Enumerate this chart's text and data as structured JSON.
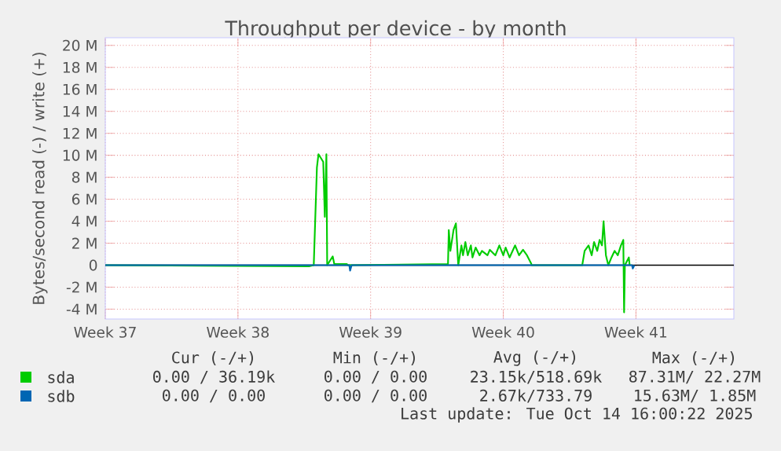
{
  "chart_data": {
    "type": "line",
    "title": "Throughput per device - by month",
    "ylabel": "Bytes/second read (-) / write (+)",
    "xlim": [
      "2025-09-11T12:00",
      "2025-10-14T16:00"
    ],
    "xticks": [
      {
        "value": "2025-09-11T12:00",
        "label": "Week 37"
      },
      {
        "value": "2025-09-18T12:00",
        "label": "Week 38"
      },
      {
        "value": "2025-09-25T12:00",
        "label": "Week 39"
      },
      {
        "value": "2025-10-02T12:00",
        "label": "Week 40"
      },
      {
        "value": "2025-10-09T12:00",
        "label": "Week 41"
      }
    ],
    "ylim": [
      -4.9,
      20.7
    ],
    "yticks": [
      {
        "value": -4,
        "label": "-4 M"
      },
      {
        "value": -2,
        "label": "-2 M"
      },
      0,
      {
        "value": 2,
        "label": "2 M"
      },
      {
        "value": 4,
        "label": "4 M"
      },
      {
        "value": 6,
        "label": "6 M"
      },
      {
        "value": 8,
        "label": "8 M"
      },
      {
        "value": 10,
        "label": "10 M"
      },
      {
        "value": 12,
        "label": "12 M"
      },
      {
        "value": 14,
        "label": "14 M"
      },
      {
        "value": 16,
        "label": "16 M"
      },
      {
        "value": 18,
        "label": "18 M"
      },
      {
        "value": 20,
        "label": "20 M"
      }
    ],
    "grid": true,
    "legend": "bottom",
    "marker": "none",
    "line_style": "solid",
    "ref_lines": [
      {
        "axis": "y",
        "value": 0,
        "color": "#000000"
      }
    ],
    "series": [
      {
        "name": "sda",
        "color": "#00cc00",
        "x": [
          "2025-09-11T12:00",
          "2025-09-22T06:00",
          "2025-09-22T12:00",
          "2025-09-22T16:00",
          "2025-09-22T18:00",
          "2025-09-23T00:00",
          "2025-09-23T02:00",
          "2025-09-23T04:00",
          "2025-09-23T05:00",
          "2025-09-23T12:00",
          "2025-09-23T14:00",
          "2025-09-24T06:00",
          "2025-09-24T07:00",
          "2025-09-29T14:00",
          "2025-09-29T15:00",
          "2025-09-29T17:00",
          "2025-09-29T21:00",
          "2025-09-30T00:00",
          "2025-09-30T03:00",
          "2025-09-30T07:00",
          "2025-09-30T09:00",
          "2025-09-30T12:00",
          "2025-09-30T15:00",
          "2025-09-30T19:00",
          "2025-09-30T21:00",
          "2025-10-01T01:00",
          "2025-10-01T06:00",
          "2025-10-01T09:00",
          "2025-10-01T16:00",
          "2025-10-01T19:00",
          "2025-10-02T02:00",
          "2025-10-02T07:00",
          "2025-10-02T12:00",
          "2025-10-02T15:00",
          "2025-10-02T20:00",
          "2025-10-03T03:00",
          "2025-10-03T08:00",
          "2025-10-03T13:00",
          "2025-10-03T18:00",
          "2025-10-03T23:00",
          "2025-10-04T00:00",
          "2025-10-06T16:00",
          "2025-10-06T19:00",
          "2025-10-07T00:00",
          "2025-10-07T04:00",
          "2025-10-07T07:00",
          "2025-10-07T11:00",
          "2025-10-07T14:00",
          "2025-10-07T17:00",
          "2025-10-07T19:00",
          "2025-10-07T22:00",
          "2025-10-08T01:00",
          "2025-10-08T05:00",
          "2025-10-08T09:00",
          "2025-10-08T13:00",
          "2025-10-08T17:00",
          "2025-10-08T20:00",
          "2025-10-08T21:00",
          "2025-10-08T22:00",
          "2025-10-09T03:00",
          "2025-10-09T04:00"
        ],
        "values": [
          0,
          -0.1,
          0,
          8.9,
          10.1,
          9.4,
          4.4,
          10.1,
          0,
          0.8,
          0.1,
          0.1,
          0,
          0.1,
          3.2,
          1.3,
          3.2,
          3.8,
          0,
          1.8,
          0.9,
          2.1,
          0.9,
          1.8,
          0.7,
          1.6,
          0.9,
          1.3,
          0.9,
          1.4,
          0.9,
          1.8,
          0.9,
          1.6,
          0.7,
          1.8,
          0.9,
          1.4,
          0.9,
          0.2,
          0,
          0,
          1.3,
          1.8,
          0.9,
          2.1,
          1.3,
          2.3,
          1.8,
          4.0,
          0.9,
          0,
          0.7,
          1.3,
          0.9,
          1.8,
          2.3,
          -4.3,
          0,
          0.7,
          0
        ]
      },
      {
        "name": "sdb",
        "color": "#0066b3",
        "x": [
          "2025-09-11T12:00",
          "2025-09-24T09:00",
          "2025-09-24T10:00",
          "2025-09-24T12:00",
          "2025-10-09T07:00",
          "2025-10-09T08:00",
          "2025-10-09T10:00"
        ],
        "values": [
          0,
          0,
          -0.5,
          0,
          0,
          -0.3,
          0
        ]
      }
    ],
    "annotations": [
      "Cur (-/+)",
      "Min (-/+)",
      "Avg (-/+)",
      "Max (-/+)",
      "0.00 / 36.19k",
      "0.00 / 0.00",
      "23.15k/518.69k",
      "87.31M/ 22.27M",
      "0.00 / 0.00",
      "0.00 / 0.00",
      "2.67k/733.79",
      "15.63M/ 1.85M",
      "Last update: Tue Oct 14 16:00:22 2025"
    ]
  }
}
